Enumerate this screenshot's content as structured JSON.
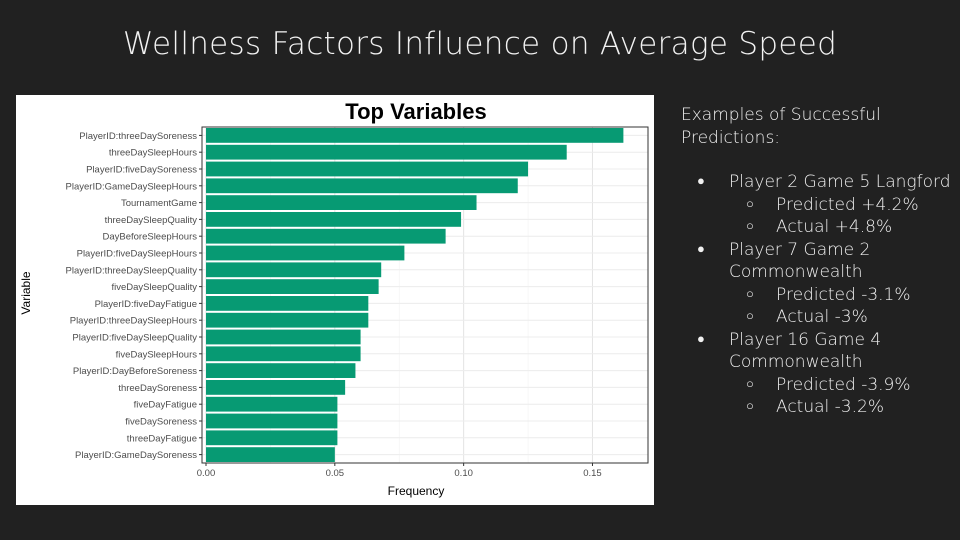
{
  "slide": {
    "title": "Wellness Factors Influence on Average Speed"
  },
  "side": {
    "heading": "Examples of Successful Predictions:",
    "examples": [
      {
        "label": "Player 2 Game 5 Langford",
        "predicted": "Predicted +4.2%",
        "actual": "Actual +4.8%"
      },
      {
        "label": "Player 7 Game 2 Commonwealth",
        "predicted": "Predicted -3.1%",
        "actual": "Actual -3%"
      },
      {
        "label": "Player 16 Game 4 Commonwealth",
        "predicted": "Predicted -3.9%",
        "actual": "Actual -3.2%"
      }
    ]
  },
  "chart_data": {
    "type": "bar",
    "orientation": "horizontal",
    "title": "Top Variables",
    "xlabel": "Frequency",
    "ylabel": "Variable",
    "xlim": [
      0,
      0.17
    ],
    "xticks": [
      0.0,
      0.05,
      0.1,
      0.15
    ],
    "xtick_labels": [
      "0.00",
      "0.05",
      "0.10",
      "0.15"
    ],
    "grid": true,
    "bar_color": "#079a73",
    "categories": [
      "PlayerID:threeDaySoreness",
      "threeDaySleepHours",
      "PlayerID:fiveDaySoreness",
      "PlayerID:GameDaySleepHours",
      "TournamentGame",
      "threeDaySleepQuality",
      "DayBeforeSleepHours",
      "PlayerID:fiveDaySleepHours",
      "PlayerID:threeDaySleepQuality",
      "fiveDaySleepQuality",
      "PlayerID:fiveDayFatigue",
      "PlayerID:threeDaySleepHours",
      "PlayerID:fiveDaySleepQuality",
      "fiveDaySleepHours",
      "PlayerID:DayBeforeSoreness",
      "threeDaySoreness",
      "fiveDayFatigue",
      "fiveDaySoreness",
      "threeDayFatigue",
      "PlayerID:GameDaySoreness"
    ],
    "values": [
      0.162,
      0.14,
      0.125,
      0.121,
      0.105,
      0.099,
      0.093,
      0.077,
      0.068,
      0.067,
      0.063,
      0.063,
      0.06,
      0.06,
      0.058,
      0.054,
      0.051,
      0.051,
      0.051,
      0.05
    ]
  }
}
